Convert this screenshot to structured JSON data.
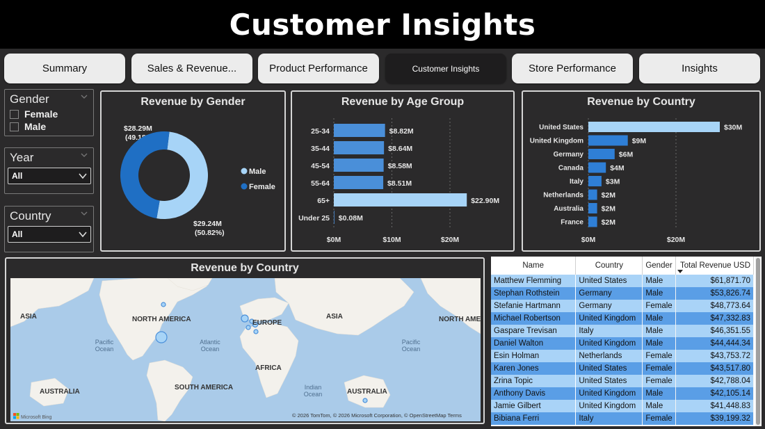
{
  "header": {
    "title": "Customer Insights"
  },
  "tabs": [
    {
      "label": "Summary",
      "active": false
    },
    {
      "label": "Sales & Revenue...",
      "active": false
    },
    {
      "label": "Product Performance",
      "active": false
    },
    {
      "label": "Customer Insights",
      "active": true
    },
    {
      "label": "Store Performance",
      "active": false
    },
    {
      "label": "Insights",
      "active": false
    }
  ],
  "filters": {
    "gender": {
      "title": "Gender",
      "options": [
        "Female",
        "Male"
      ]
    },
    "year": {
      "title": "Year",
      "value": "All"
    },
    "country": {
      "title": "Country",
      "value": "All"
    }
  },
  "colors": {
    "dark_blue": "#1f6fc4",
    "light_blue": "#a7d4f7",
    "bar_blue": "#4a8fd9",
    "highlight_blue": "#a7d4f7"
  },
  "gender_chart": {
    "title": "Revenue by Gender",
    "slices": [
      {
        "name": "Male",
        "value": 29.24,
        "label": "$29.24M",
        "pct": "(50.82%)",
        "color": "#a7d4f7"
      },
      {
        "name": "Female",
        "value": 28.29,
        "label": "$28.29M",
        "pct": "(49.18%)",
        "color": "#1f6fc4"
      }
    ],
    "legend": [
      "Male",
      "Female"
    ]
  },
  "age_chart": {
    "title": "Revenue by Age Group",
    "categories": [
      "25-34",
      "35-44",
      "45-54",
      "55-64",
      "65+",
      "Under 25"
    ],
    "values": [
      8.82,
      8.64,
      8.58,
      8.51,
      22.9,
      0.08
    ],
    "labels": [
      "$8.82M",
      "$8.64M",
      "$8.58M",
      "$8.51M",
      "$22.90M",
      "$0.08M"
    ],
    "ticks": [
      "$0M",
      "$10M",
      "$20M"
    ]
  },
  "country_chart": {
    "title": "Revenue by Country",
    "categories": [
      "United States",
      "United Kingdom",
      "Germany",
      "Canada",
      "Italy",
      "Netherlands",
      "Australia",
      "France"
    ],
    "values": [
      30,
      9,
      6,
      4,
      3,
      2,
      2,
      2
    ],
    "labels": [
      "$30M",
      "$9M",
      "$6M",
      "$4M",
      "$3M",
      "$2M",
      "$2M",
      "$2M"
    ],
    "ticks": [
      "$0M",
      "$20M"
    ]
  },
  "map": {
    "title": "Revenue by Country",
    "labels": {
      "asia_left": "ASIA",
      "north_america": "NORTH AMERICA",
      "europe": "EUROPE",
      "asia_right": "ASIA",
      "north_america_right": "NORTH AME",
      "pacific_left": "Pacific\nOcean",
      "atlantic": "Atlantic\nOcean",
      "africa": "AFRICA",
      "pacific_right": "Pacific\nOcean",
      "south_america": "SOUTH AMERICA",
      "indian": "Indian\nOcean",
      "australia_left": "AUSTRALIA",
      "australia_right": "AUSTRALIA"
    },
    "attribution": "© 2026 TomTom, © 2026 Microsoft Corporation, © OpenStreetMap  Terms",
    "logo": "Microsoft Bing"
  },
  "table": {
    "headers": [
      "Name",
      "Country",
      "Gender",
      "Total Revenue USD"
    ],
    "rows": [
      [
        "Matthew Flemming",
        "United States",
        "Male",
        "$61,871.70"
      ],
      [
        "Stephan Rothstein",
        "Germany",
        "Male",
        "$53,826.74"
      ],
      [
        "Stefanie Hartmann",
        "Germany",
        "Female",
        "$48,773.64"
      ],
      [
        "Michael Robertson",
        "United Kingdom",
        "Male",
        "$47,332.83"
      ],
      [
        "Gaspare Trevisan",
        "Italy",
        "Male",
        "$46,351.55"
      ],
      [
        "Daniel Walton",
        "United Kingdom",
        "Male",
        "$44,444.34"
      ],
      [
        "Esin Holman",
        "Netherlands",
        "Female",
        "$43,753.72"
      ],
      [
        "Karen Jones",
        "United States",
        "Female",
        "$43,517.80"
      ],
      [
        "Zrina Topic",
        "United States",
        "Female",
        "$42,788.04"
      ],
      [
        "Anthony Davis",
        "United Kingdom",
        "Male",
        "$42,105.14"
      ],
      [
        "Jamie Gilbert",
        "United Kingdom",
        "Male",
        "$41,448.83"
      ],
      [
        "Bibiana Ferri",
        "Italy",
        "Female",
        "$39,199.32"
      ]
    ]
  }
}
